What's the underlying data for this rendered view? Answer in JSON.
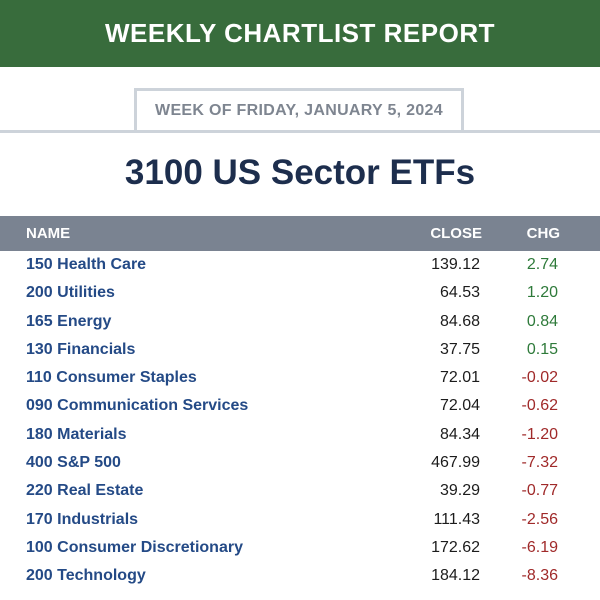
{
  "banner": {
    "title": "WEEKLY CHARTLIST REPORT"
  },
  "week": {
    "label": "WEEK OF FRIDAY, JANUARY 5, 2024"
  },
  "title": "3100 US Sector ETFs",
  "table": {
    "headers": {
      "name": "NAME",
      "close": "CLOSE",
      "chg": "CHG"
    },
    "rows": [
      {
        "name": "150 Health Care",
        "close": "139.12",
        "chg": "2.74"
      },
      {
        "name": "200 Utilities",
        "close": "64.53",
        "chg": "1.20"
      },
      {
        "name": "165 Energy",
        "close": "84.68",
        "chg": "0.84"
      },
      {
        "name": "130 Financials",
        "close": "37.75",
        "chg": "0.15"
      },
      {
        "name": "110 Consumer Staples",
        "close": "72.01",
        "chg": "-0.02"
      },
      {
        "name": "090 Communication Services",
        "close": "72.04",
        "chg": "-0.62"
      },
      {
        "name": "180 Materials",
        "close": "84.34",
        "chg": "-1.20"
      },
      {
        "name": "400 S&P 500",
        "close": "467.99",
        "chg": "-7.32"
      },
      {
        "name": "220 Real Estate",
        "close": "39.29",
        "chg": "-0.77"
      },
      {
        "name": "170 Industrials",
        "close": "111.43",
        "chg": "-2.56"
      },
      {
        "name": "100 Consumer Discretionary",
        "close": "172.62",
        "chg": "-6.19"
      },
      {
        "name": "200 Technology",
        "close": "184.12",
        "chg": "-8.36"
      }
    ]
  },
  "colors": {
    "banner": "#386c3c",
    "header": "#7a8391",
    "positive": "#2e7a3a",
    "negative": "#a02a2a",
    "name": "#244a86"
  }
}
